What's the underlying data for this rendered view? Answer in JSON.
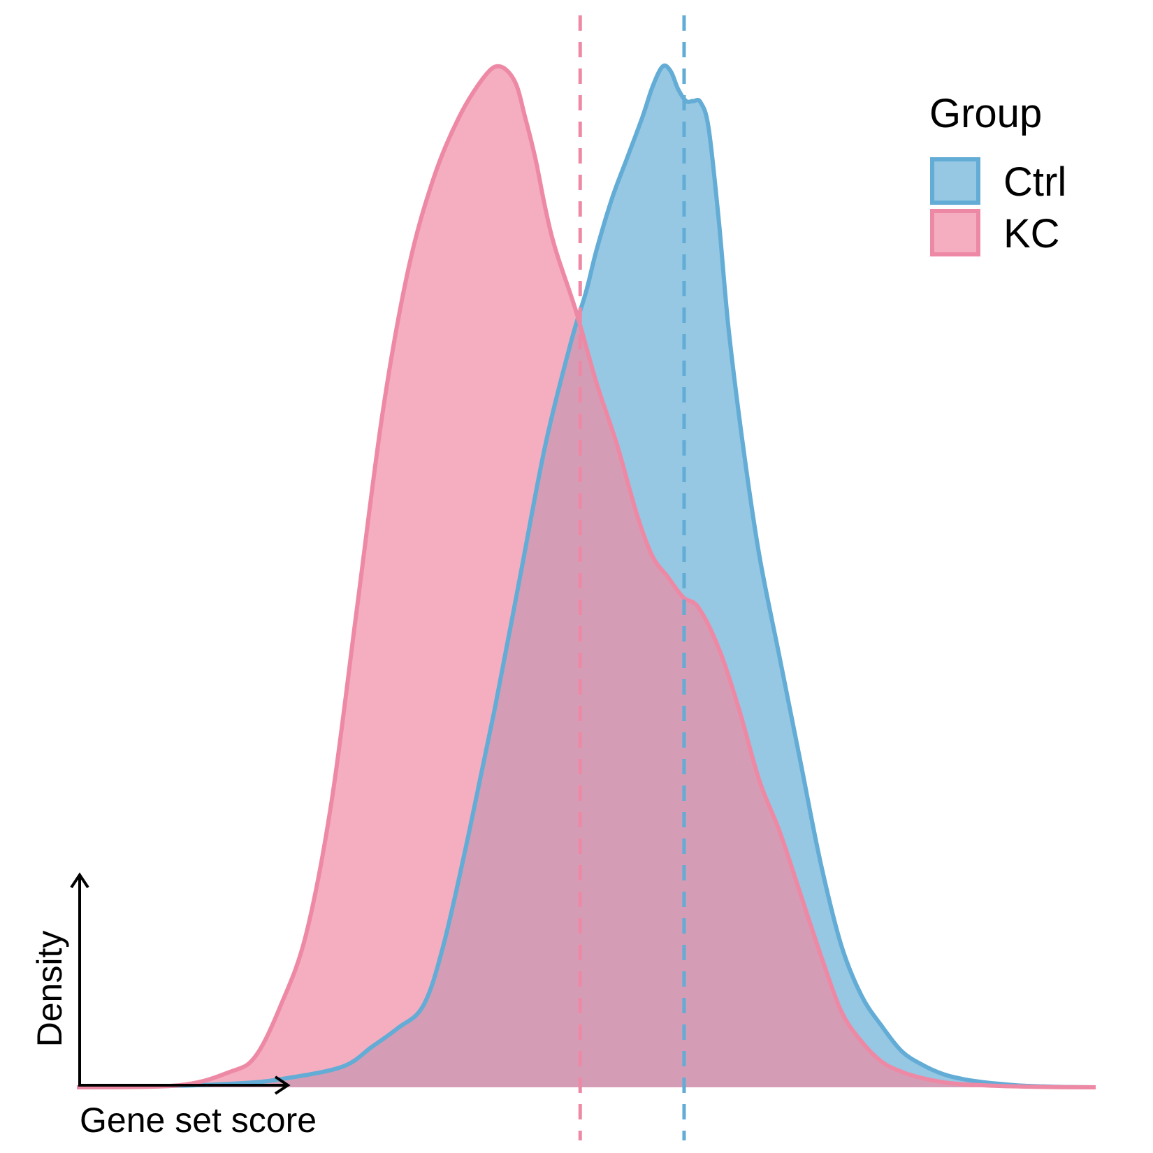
{
  "chart_data": {
    "type": "area",
    "xlabel": "Gene set score",
    "ylabel": "Density",
    "legend": {
      "title": "Group",
      "placement": "top-right",
      "entries": [
        {
          "label": "Ctrl",
          "fill": "#96c7e3",
          "stroke": "#62acd6"
        },
        {
          "label": "KC",
          "fill": "#f4aec0",
          "stroke": "#ee89a5"
        }
      ]
    },
    "overlap_color": "#d49db5",
    "xlim": [
      0,
      100
    ],
    "ylim": [
      0,
      100
    ],
    "series": [
      {
        "name": "Ctrl",
        "mean_line": 59.6,
        "x": [
          0,
          8,
          16,
          20,
          26,
          29,
          31.5,
          34,
          36,
          38.5,
          41,
          43.5,
          46,
          48.5,
          50,
          51,
          52.5,
          54,
          55.5,
          56.5,
          57.5,
          58.3,
          59.0,
          59.8,
          60.5,
          61.2,
          62,
          63,
          64,
          65.5,
          67,
          69,
          71,
          73,
          75,
          77,
          79,
          81,
          83,
          85,
          87,
          89,
          91,
          93,
          95,
          97,
          100
        ],
        "y": [
          0,
          0.1,
          0.4,
          0.8,
          2.0,
          4.0,
          5.8,
          8.0,
          14,
          25,
          37,
          50,
          63,
          73,
          78,
          82,
          87,
          91,
          95,
          98,
          100,
          99.5,
          97.8,
          96.6,
          96.6,
          96.5,
          94,
          85,
          74,
          62,
          52,
          42,
          32,
          22,
          14,
          9,
          6,
          3.5,
          2.2,
          1.3,
          0.8,
          0.5,
          0.3,
          0.15,
          0.08,
          0.03,
          0
        ]
      },
      {
        "name": "KC",
        "mean_line": 49.4,
        "x": [
          0,
          10,
          15,
          17.5,
          20,
          22.5,
          25,
          27.5,
          30,
          32.5,
          35,
          37.5,
          40,
          41.5,
          43,
          44,
          45,
          46,
          47,
          49,
          51,
          53,
          55,
          56.5,
          58,
          59.5,
          61,
          63,
          65,
          67,
          69,
          71,
          73,
          75,
          77,
          79,
          81,
          83,
          85,
          87,
          90,
          93,
          96,
          100
        ],
        "y": [
          0,
          0.2,
          1.5,
          3.0,
          8,
          15,
          28,
          47,
          66,
          80,
          89,
          95,
          99,
          100,
          98.5,
          95,
          91,
          86,
          82,
          76,
          69,
          63,
          56,
          52,
          50,
          48,
          47,
          43,
          37,
          30,
          25,
          19,
          13,
          7.5,
          4.5,
          2.5,
          1.5,
          0.9,
          0.5,
          0.3,
          0.15,
          0.07,
          0.02,
          0
        ]
      }
    ]
  }
}
